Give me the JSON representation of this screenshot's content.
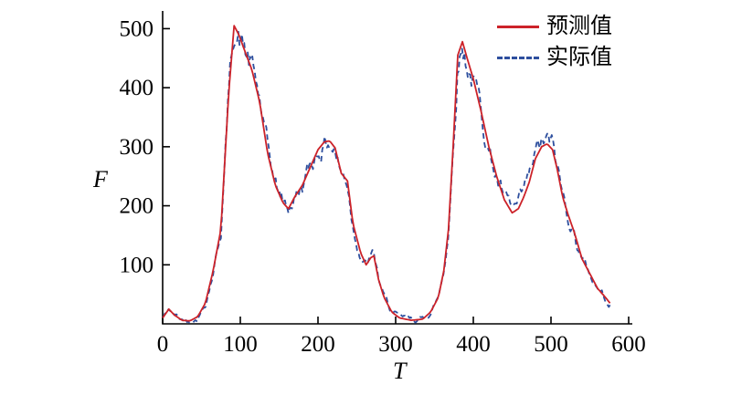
{
  "chart_data": {
    "type": "line",
    "title": "",
    "xlabel": "T",
    "ylabel": "F",
    "xlim": [
      0,
      600
    ],
    "ylim": [
      0,
      530
    ],
    "xticks": [
      0,
      100,
      200,
      300,
      400,
      500,
      600
    ],
    "yticks": [
      100,
      200,
      300,
      400,
      500
    ],
    "grid": false,
    "legend_position": "top-right-inside",
    "axis_color": "#000000",
    "legend": [
      {
        "name": "预测值",
        "color": "#cc2229",
        "style": "solid"
      },
      {
        "name": "实际值",
        "color": "#2e4f9e",
        "style": "dashed"
      }
    ],
    "series": [
      {
        "name": "预测值",
        "style": "solid",
        "color": "#cc2229",
        "x": [
          0,
          8,
          15,
          25,
          35,
          45,
          55,
          65,
          75,
          85,
          92,
          98,
          105,
          115,
          125,
          135,
          145,
          155,
          162,
          170,
          180,
          190,
          200,
          208,
          215,
          222,
          230,
          238,
          245,
          255,
          262,
          268,
          272,
          278,
          285,
          295,
          305,
          320,
          335,
          345,
          355,
          362,
          368,
          374,
          380,
          386,
          392,
          400,
          410,
          420,
          430,
          440,
          450,
          458,
          465,
          472,
          480,
          488,
          495,
          502,
          508,
          515,
          522,
          530,
          540,
          550,
          560,
          570,
          576
        ],
        "y": [
          10,
          25,
          15,
          6,
          5,
          12,
          35,
          90,
          160,
          390,
          505,
          490,
          465,
          430,
          375,
          290,
          235,
          205,
          195,
          215,
          235,
          265,
          295,
          308,
          310,
          298,
          255,
          242,
          170,
          120,
          100,
          112,
          115,
          75,
          45,
          20,
          10,
          6,
          8,
          20,
          45,
          90,
          160,
          300,
          455,
          478,
          450,
          415,
          360,
          300,
          250,
          210,
          188,
          195,
          215,
          240,
          280,
          300,
          305,
          295,
          262,
          215,
          185,
          155,
          110,
          85,
          60,
          45,
          35
        ]
      },
      {
        "name": "实际值",
        "style": "dashed",
        "color": "#2e4f9e",
        "derived_from": "预测值",
        "noise": {
          "seed": 42,
          "step": 1.5,
          "decay": 0.82,
          "base_amplitude": 3,
          "relative_amplitude": 0.035,
          "clamp": [
            2,
            526
          ]
        }
      }
    ]
  }
}
